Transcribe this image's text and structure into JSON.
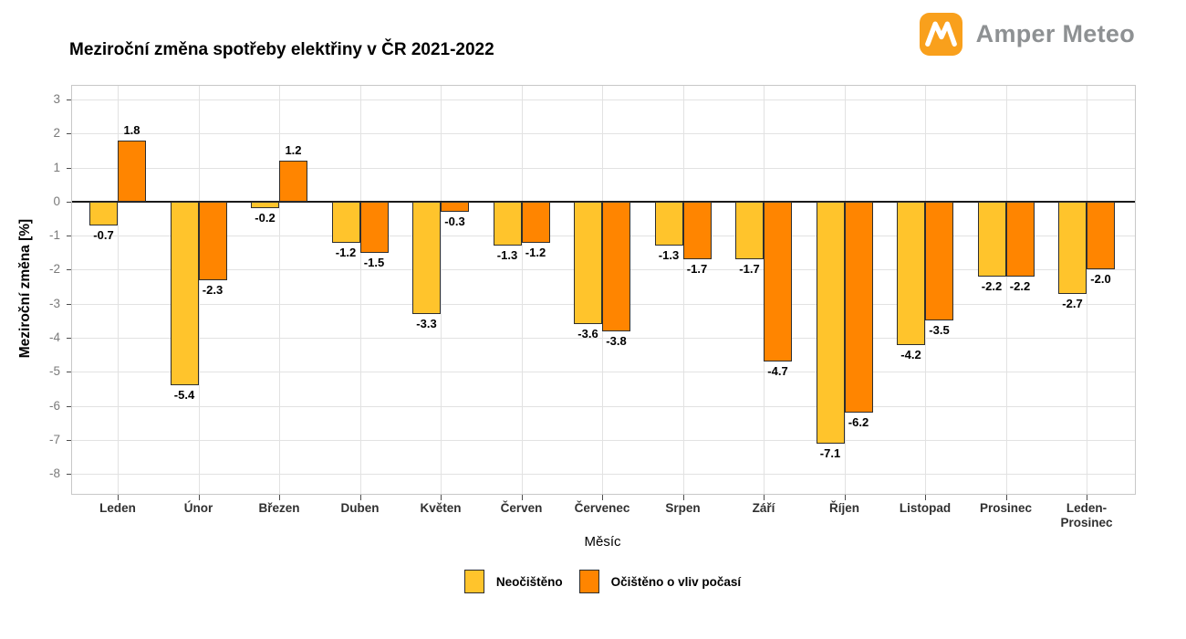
{
  "header": {
    "brand": "Amper Meteo"
  },
  "colors": {
    "series1": "#FFC42C",
    "series2": "#FF8500",
    "bar_border": "#2E2E2E",
    "grid": "#E2E2E2",
    "plot_border": "#C8C8C8",
    "zero_line": "#1A1A1A",
    "logo_orange": "#F9A01C",
    "brand_text": "#8E9193",
    "ytick_label": "#7A7A7A"
  },
  "chart_data": {
    "type": "bar",
    "title": "Meziroční změna spotřeby elektřiny v ČR 2021-2022",
    "xlabel": "Měsíc",
    "ylabel": "Meziroční změna [%]",
    "ylim": [
      -8.58,
      3.4
    ],
    "yticks": [
      3,
      2,
      1,
      0,
      -1,
      -2,
      -3,
      -4,
      -5,
      -6,
      -7,
      -8
    ],
    "grid": true,
    "legend_position": "bottom",
    "value_labels": true,
    "categories": [
      "Leden",
      "Únor",
      "Březen",
      "Duben",
      "Květen",
      "Červen",
      "Červenec",
      "Srpen",
      "Září",
      "Říjen",
      "Listopad",
      "Prosinec",
      "Leden-\nProsinec"
    ],
    "series": [
      {
        "name": "Neočištěno",
        "color": "#FFC42C",
        "values": [
          -0.7,
          -5.4,
          -0.2,
          -1.2,
          -3.3,
          -1.3,
          -3.6,
          -1.3,
          -1.7,
          -7.1,
          -4.2,
          -2.2,
          -2.7
        ]
      },
      {
        "name": "Očištěno o vliv počasí",
        "color": "#FF8500",
        "values": [
          1.8,
          -2.3,
          1.2,
          -1.5,
          -0.3,
          -1.2,
          -3.8,
          -1.7,
          -4.7,
          -6.2,
          -3.5,
          -2.2,
          -2.0
        ]
      }
    ]
  }
}
